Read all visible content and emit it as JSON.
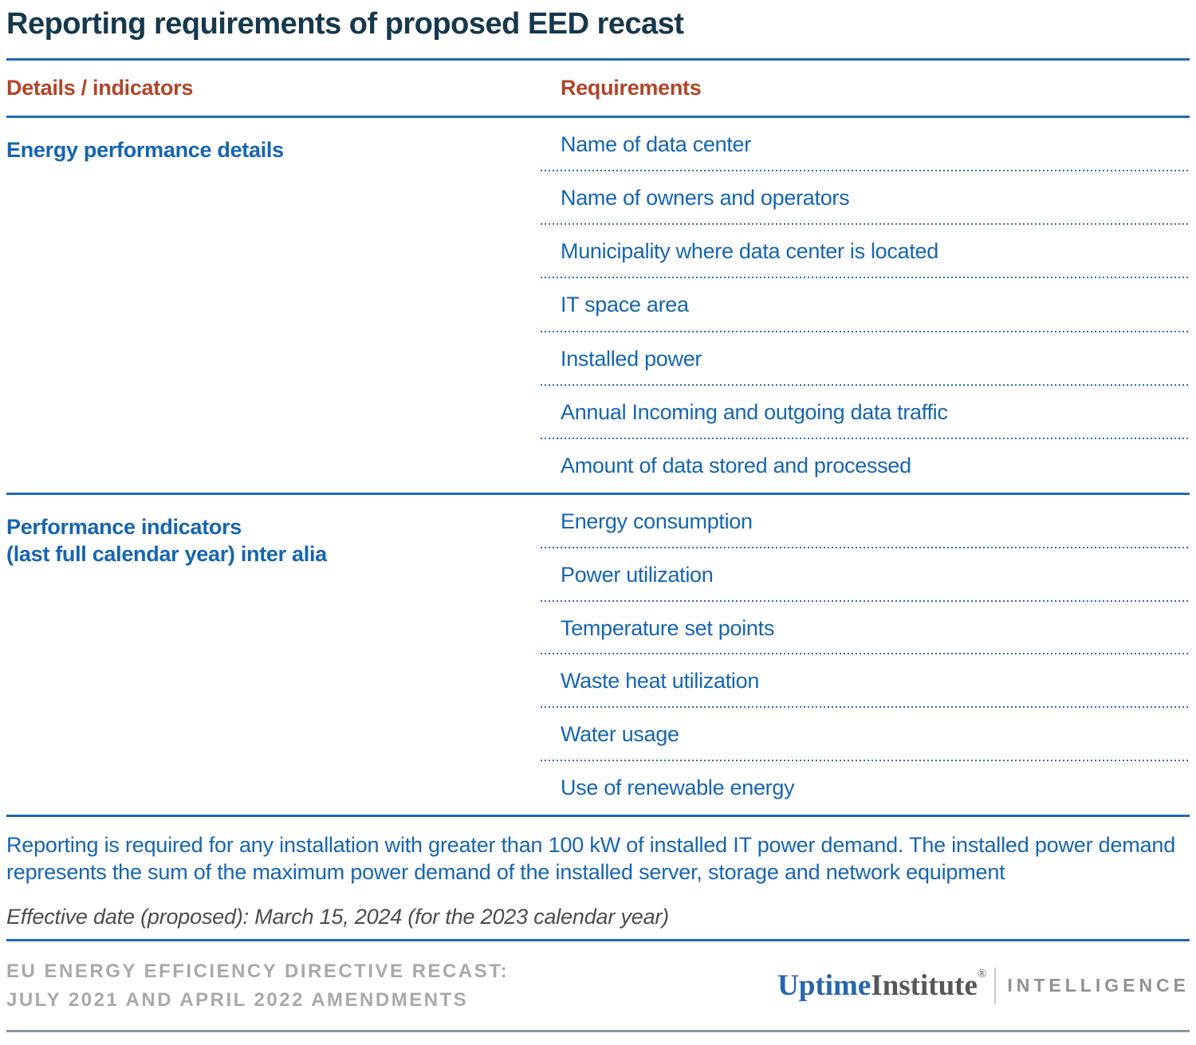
{
  "title": "Reporting requirements of proposed EED recast",
  "table": {
    "col1_header": "Details / indicators",
    "col2_header": "Requirements",
    "sections": [
      {
        "label": "Energy performance details",
        "label_line2": "",
        "items": [
          "Name of data center",
          "Name of owners and operators",
          "Municipality where data center is located",
          "IT space area",
          "Installed power",
          "Annual Incoming and outgoing data traffic",
          "Amount of data stored and processed"
        ]
      },
      {
        "label": "Performance indicators",
        "label_line2": "(last full calendar year) inter alia",
        "items": [
          "Energy consumption",
          "Power utilization",
          "Temperature set points",
          "Waste heat utilization",
          "Water usage",
          "Use of renewable energy"
        ]
      }
    ]
  },
  "notes": {
    "reporting_note": "Reporting is required for any installation with greater than 100 kW of installed IT power demand. The installed power demand represents the sum of the maximum power demand of the installed server, storage and network equipment",
    "effective_date": "Effective date (proposed): March 15, 2024 (for the 2023 calendar year)"
  },
  "footer": {
    "source_line1": "EU ENERGY EFFICIENCY DIRECTIVE RECAST:",
    "source_line2": "JULY 2021 AND APRIL 2022 AMENDMENTS",
    "logo": {
      "brand_part1": "Uptime",
      "brand_part2": "Institute",
      "registered": "®",
      "division": "INTELLIGENCE"
    }
  },
  "colors": {
    "title_navy": "#16384e",
    "header_rust": "#b04527",
    "body_blue": "#1565b2",
    "rule_blue": "#1e68b5",
    "note_gray": "#4c4c4e",
    "source_gray": "#a7a9ac",
    "logo_blue": "#2565ae",
    "logo_gray": "#55575b",
    "intelligence_gray": "#8f9194",
    "bottom_rule_gray": "#8c94a1"
  }
}
